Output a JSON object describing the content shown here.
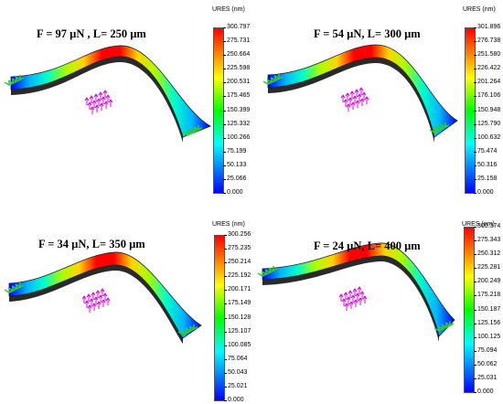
{
  "colorbar_gradient": [
    "#0000ff",
    "#0055ff",
    "#00aaff",
    "#00ffff",
    "#00ff80",
    "#00ff00",
    "#80ff00",
    "#ffff00",
    "#ffaa00",
    "#ff5500",
    "#ff0000"
  ],
  "beam_stops": [
    "#0000ff",
    "#00b3ff",
    "#00ffcc",
    "#a6ff00",
    "#ffd400",
    "#ff0000",
    "#ff0000",
    "#ffd400",
    "#a6ff00",
    "#00ffcc",
    "#00b3ff",
    "#0000ff"
  ],
  "support_color": "#33cc33",
  "force_color": "#e000e0",
  "panels": [
    {
      "title": "F = 97 µN , L= 250 µm",
      "unit_label": "URES (nm)",
      "force_uN": 97,
      "length_um": 250,
      "colorbar_ticks": [
        "300.797",
        "275.731",
        "250.664",
        "225.598",
        "200.531",
        "175.465",
        "150.399",
        "125.332",
        "100.266",
        "75.199",
        "50.133",
        "25.066",
        "0.000"
      ]
    },
    {
      "title": "F = 54 µN, L= 300 µm",
      "unit_label": "URES (nm)",
      "force_uN": 54,
      "length_um": 300,
      "colorbar_ticks": [
        "301.896",
        "276.738",
        "251.580",
        "226.422",
        "201.264",
        "176.106",
        "150.948",
        "125.790",
        "100.632",
        "75.474",
        "50.316",
        "25.158",
        "0.000"
      ]
    },
    {
      "title": "F = 34 µN, L= 350 µm",
      "unit_label": "URES (nm)",
      "force_uN": 34,
      "length_um": 350,
      "colorbar_ticks": [
        "300.256",
        "275.235",
        "250.214",
        "225.192",
        "200.171",
        "175.149",
        "150.128",
        "125.107",
        "100.085",
        "75.064",
        "50.043",
        "25.021",
        "0.000"
      ]
    },
    {
      "title": "F = 24 µN, L= 400 µm",
      "unit_label": "URES (nm)",
      "force_uN": 24,
      "length_um": 400,
      "colorbar_ticks": [
        "300.374",
        "275.343",
        "250.312",
        "225.281",
        "200.249",
        "175.218",
        "150.187",
        "125.156",
        "100.125",
        "75.094",
        "50.062",
        "25.031",
        "0.000"
      ]
    }
  ]
}
